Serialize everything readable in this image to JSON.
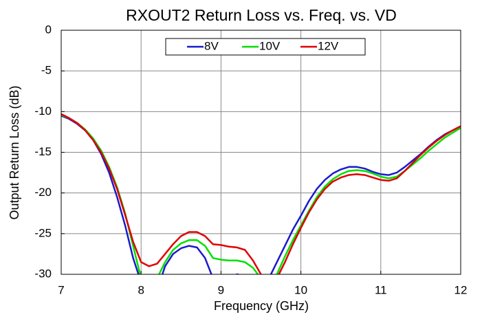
{
  "chart_data": {
    "type": "line",
    "title": "RXOUT2 Return Loss vs. Freq. vs. VD",
    "xlabel": "Frequency (GHz)",
    "ylabel": "Output Return Loss (dB)",
    "x": [
      7.0,
      7.1,
      7.2,
      7.3,
      7.4,
      7.5,
      7.6,
      7.7,
      7.8,
      7.9,
      8.0,
      8.1,
      8.2,
      8.3,
      8.4,
      8.5,
      8.6,
      8.7,
      8.8,
      8.9,
      9.0,
      9.1,
      9.2,
      9.3,
      9.4,
      9.5,
      9.6,
      9.7,
      9.8,
      9.9,
      10.0,
      10.1,
      10.2,
      10.3,
      10.4,
      10.5,
      10.6,
      10.7,
      10.8,
      10.9,
      11.0,
      11.1,
      11.2,
      11.3,
      11.4,
      11.5,
      11.6,
      11.7,
      11.8,
      11.9,
      12.0
    ],
    "series": [
      {
        "name": "8V",
        "color": "#1a1acc",
        "values": [
          -10.5,
          -10.9,
          -11.5,
          -12.3,
          -13.5,
          -15.2,
          -17.5,
          -20.5,
          -24,
          -28,
          -31,
          -33,
          -32,
          -29,
          -27.5,
          -26.8,
          -26.5,
          -26.7,
          -28,
          -30.5,
          -31,
          -30.5,
          -30,
          -30.2,
          -31,
          -31.5,
          -30.5,
          -28.5,
          -26.5,
          -24.5,
          -22.8,
          -21,
          -19.5,
          -18.4,
          -17.6,
          -17.1,
          -16.8,
          -16.8,
          -17,
          -17.4,
          -17.7,
          -17.8,
          -17.5,
          -16.8,
          -16,
          -15.2,
          -14.3,
          -13.5,
          -12.8,
          -12.3,
          -11.8
        ]
      },
      {
        "name": "10V",
        "color": "#00e000",
        "values": [
          -10.4,
          -10.8,
          -11.4,
          -12.2,
          -13.3,
          -14.8,
          -16.8,
          -19.3,
          -22.5,
          -26.5,
          -30.5,
          -31,
          -30.5,
          -28.5,
          -27,
          -26.2,
          -25.8,
          -25.8,
          -26.5,
          -28,
          -28.2,
          -28.3,
          -28.3,
          -28.5,
          -29.2,
          -30.5,
          -31.5,
          -30,
          -27.8,
          -25.8,
          -24,
          -22.2,
          -20.5,
          -19.2,
          -18.3,
          -17.7,
          -17.3,
          -17.2,
          -17.3,
          -17.6,
          -18,
          -18.2,
          -18,
          -17.3,
          -16.5,
          -15.7,
          -14.8,
          -14,
          -13.2,
          -12.6,
          -12
        ]
      },
      {
        "name": "12V",
        "color": "#e00000",
        "values": [
          -10.3,
          -10.8,
          -11.4,
          -12.3,
          -13.5,
          -15,
          -17,
          -19.5,
          -22.7,
          -26,
          -28.5,
          -29,
          -28.7,
          -27.5,
          -26.3,
          -25.3,
          -24.8,
          -24.8,
          -25.3,
          -26.3,
          -26.4,
          -26.6,
          -26.7,
          -27,
          -28.3,
          -30,
          -31.5,
          -30.5,
          -28.5,
          -26.3,
          -24.3,
          -22.4,
          -20.8,
          -19.5,
          -18.6,
          -18.1,
          -17.8,
          -17.7,
          -17.8,
          -18.1,
          -18.4,
          -18.5,
          -18.2,
          -17.3,
          -16.3,
          -15.3,
          -14.4,
          -13.6,
          -12.9,
          -12.3,
          -11.8
        ]
      }
    ],
    "xlim": [
      7,
      12
    ],
    "xticks": [
      7,
      8,
      9,
      10,
      11,
      12
    ],
    "ylim": [
      -30,
      0
    ],
    "yticks": [
      0,
      -5,
      -10,
      -15,
      -20,
      -25,
      -30
    ],
    "grid": true,
    "legend": "top"
  }
}
